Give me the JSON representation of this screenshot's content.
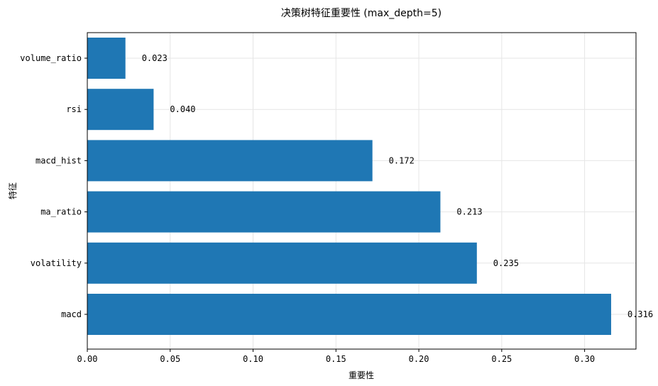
{
  "chart_data": {
    "type": "bar",
    "orientation": "horizontal",
    "title": "决策树特征重要性 (max_depth=5)",
    "xlabel": "重要性",
    "ylabel": "特征",
    "categories": [
      "macd",
      "volatility",
      "ma_ratio",
      "macd_hist",
      "rsi",
      "volume_ratio"
    ],
    "values": [
      0.316,
      0.235,
      0.213,
      0.172,
      0.04,
      0.023
    ],
    "value_labels": [
      "0.316",
      "0.235",
      "0.213",
      "0.172",
      "0.040",
      "0.023"
    ],
    "xlim": [
      0,
      0.331
    ],
    "xticks": [
      0.0,
      0.05,
      0.1,
      0.15,
      0.2,
      0.25,
      0.3
    ],
    "xtick_labels": [
      "0.00",
      "0.05",
      "0.10",
      "0.15",
      "0.20",
      "0.25",
      "0.30"
    ],
    "grid": true,
    "bar_color": "#1f77b4"
  }
}
